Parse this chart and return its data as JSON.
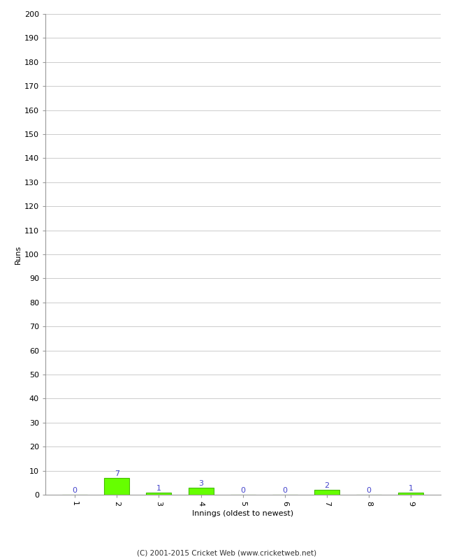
{
  "innings": [
    1,
    2,
    3,
    4,
    5,
    6,
    7,
    8,
    9
  ],
  "runs": [
    0,
    7,
    1,
    3,
    0,
    0,
    2,
    0,
    1
  ],
  "bar_color": "#66ff00",
  "bar_edge_color": "#44bb00",
  "label_color": "#4444cc",
  "xlabel": "Innings (oldest to newest)",
  "ylabel": "Runs",
  "ylim": [
    0,
    200
  ],
  "yticks": [
    0,
    10,
    20,
    30,
    40,
    50,
    60,
    70,
    80,
    90,
    100,
    110,
    120,
    130,
    140,
    150,
    160,
    170,
    180,
    190,
    200
  ],
  "footer": "(C) 2001-2015 Cricket Web (www.cricketweb.net)",
  "background_color": "#ffffff",
  "grid_color": "#cccccc"
}
